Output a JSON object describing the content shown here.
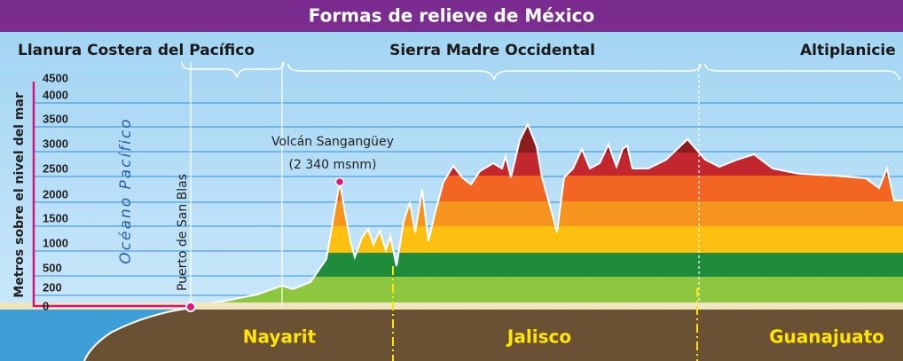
{
  "header": {
    "title": "Formas de relieve de México"
  },
  "regions": [
    "Llanura Costera del Pacífico",
    "Sierra Madre Occidental",
    "Altiplanicie"
  ],
  "y_axis": {
    "label": "Metros sobre el nivel del mar",
    "ticks": [
      "4500",
      "4000",
      "3500",
      "3000",
      "2500",
      "2000",
      "1500",
      "1000",
      "500",
      "200",
      "0"
    ]
  },
  "annotations": {
    "ocean": "Océano Pacífico",
    "port": "Puerto de San Blas",
    "volcano_name": "Volcán Sangangüey",
    "volcano_elevation": "(2 340 msnm)"
  },
  "states": [
    "Nayarit",
    "Jalisco",
    "Guanajuato"
  ]
}
